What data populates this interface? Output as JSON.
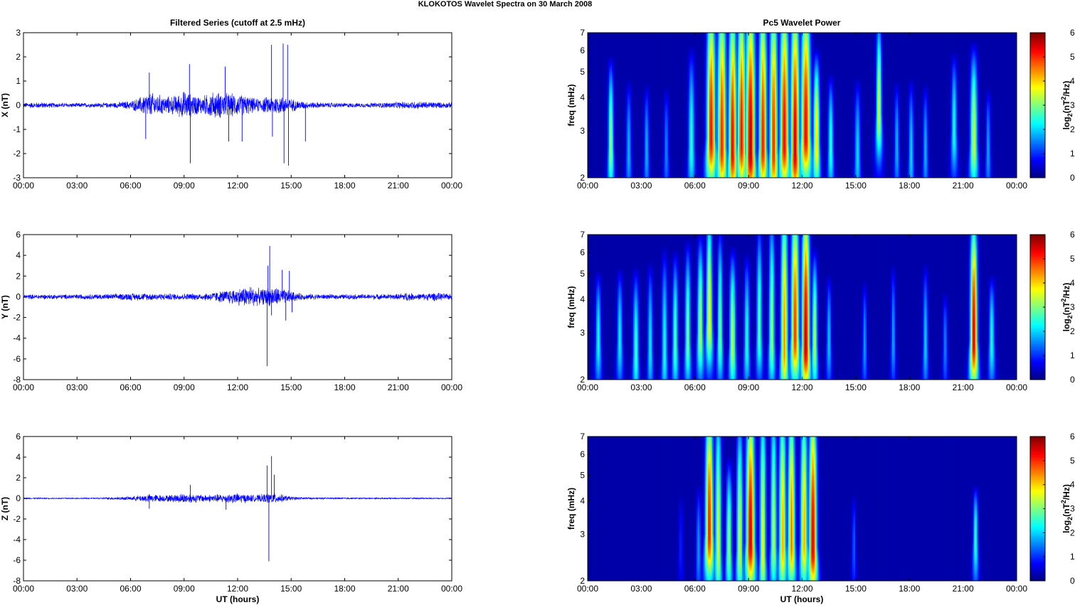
{
  "figure": {
    "title": "KLOKOTOS Wavelet Spectra on 30 March     2008",
    "left_column_title": "Filtered Series (cutoff at 2.5 mHz)",
    "right_column_title": "Pc5 Wavelet Power",
    "xlabel": "UT (hours)",
    "time_tick_labels": [
      "00:00",
      "03:00",
      "06:00",
      "09:00",
      "12:00",
      "15:00",
      "18:00",
      "21:00",
      "00:00"
    ],
    "colors": {
      "trace": "#0000ff",
      "background": "#ffffff",
      "spectrogram_floor": "#00008f"
    },
    "colormap": "jet"
  },
  "chart_data": [
    {
      "type": "line",
      "panel": "X",
      "ylabel": "X (nT)",
      "xlim": [
        0,
        24
      ],
      "ylim": [
        -3,
        3
      ],
      "yticks": [
        -3,
        -2,
        -1,
        0,
        1,
        2,
        3
      ],
      "series": [
        {
          "color": "#0000ff",
          "noise_amplitude": [
            [
              0,
              0.12
            ],
            [
              1,
              0.14
            ],
            [
              2,
              0.1
            ],
            [
              3,
              0.1
            ],
            [
              4,
              0.1
            ],
            [
              5,
              0.12
            ],
            [
              6,
              0.2
            ],
            [
              6.5,
              0.35
            ],
            [
              7,
              0.6
            ],
            [
              7.5,
              0.5
            ],
            [
              8,
              0.4
            ],
            [
              8.5,
              0.45
            ],
            [
              9,
              0.65
            ],
            [
              9.5,
              0.5
            ],
            [
              10,
              0.4
            ],
            [
              10.5,
              0.6
            ],
            [
              11,
              0.6
            ],
            [
              11.5,
              0.55
            ],
            [
              12,
              0.5
            ],
            [
              12.5,
              0.45
            ],
            [
              13,
              0.3
            ],
            [
              13.5,
              0.35
            ],
            [
              14,
              0.45
            ],
            [
              14.5,
              0.4
            ],
            [
              15,
              0.3
            ],
            [
              15.5,
              0.2
            ],
            [
              16,
              0.15
            ],
            [
              17,
              0.12
            ],
            [
              18,
              0.1
            ],
            [
              19,
              0.1
            ],
            [
              20,
              0.12
            ],
            [
              21,
              0.15
            ],
            [
              22,
              0.18
            ],
            [
              23,
              0.15
            ],
            [
              24,
              0.12
            ]
          ],
          "spikes": [
            {
              "t": 6.85,
              "v": -1.4
            },
            {
              "t": 7.05,
              "v": 1.35
            },
            {
              "t": 9.3,
              "v": 1.7
            },
            {
              "t": 9.35,
              "v": -2.4
            },
            {
              "t": 11.3,
              "v": 1.6
            },
            {
              "t": 11.5,
              "v": -1.5
            },
            {
              "t": 12.25,
              "v": -1.5
            },
            {
              "t": 13.9,
              "v": 2.5
            },
            {
              "t": 13.95,
              "v": -1.3
            },
            {
              "t": 14.55,
              "v": 2.55
            },
            {
              "t": 14.6,
              "v": -2.4
            },
            {
              "t": 14.8,
              "v": 2.5
            },
            {
              "t": 14.85,
              "v": -2.5
            },
            {
              "t": 15.8,
              "v": -1.5
            }
          ]
        }
      ]
    },
    {
      "type": "line",
      "panel": "Y",
      "ylabel": "Y (nT)",
      "xlim": [
        0,
        24
      ],
      "ylim": [
        -8,
        6
      ],
      "yticks": [
        -8,
        -6,
        -4,
        -2,
        0,
        2,
        4,
        6
      ],
      "series": [
        {
          "color": "#0000ff",
          "noise_amplitude": [
            [
              0,
              0.25
            ],
            [
              2,
              0.25
            ],
            [
              5,
              0.3
            ],
            [
              6,
              0.4
            ],
            [
              8,
              0.35
            ],
            [
              10,
              0.35
            ],
            [
              11,
              0.6
            ],
            [
              12,
              0.9
            ],
            [
              12.7,
              1.2
            ],
            [
              13.3,
              0.8
            ],
            [
              14,
              1.1
            ],
            [
              14.8,
              0.7
            ],
            [
              15.5,
              0.35
            ],
            [
              17,
              0.25
            ],
            [
              21,
              0.3
            ],
            [
              21.5,
              0.5
            ],
            [
              22,
              0.3
            ],
            [
              23,
              0.45
            ],
            [
              24,
              0.3
            ]
          ],
          "spikes": [
            {
              "t": 13.65,
              "v": -6.7
            },
            {
              "t": 13.7,
              "v": 3.0
            },
            {
              "t": 13.8,
              "v": 4.9
            },
            {
              "t": 13.9,
              "v": -1.8
            },
            {
              "t": 14.5,
              "v": 2.6
            },
            {
              "t": 14.7,
              "v": -2.3
            },
            {
              "t": 14.9,
              "v": 2.5
            },
            {
              "t": 15.05,
              "v": -1.5
            }
          ]
        }
      ]
    },
    {
      "type": "line",
      "panel": "Z",
      "ylabel": "Z (nT)",
      "xlim": [
        0,
        24
      ],
      "ylim": [
        -8,
        6
      ],
      "yticks": [
        -8,
        -6,
        -4,
        -2,
        0,
        2,
        4,
        6
      ],
      "series": [
        {
          "color": "#0000ff",
          "noise_amplitude": [
            [
              0,
              0.06
            ],
            [
              4,
              0.06
            ],
            [
              5,
              0.15
            ],
            [
              6,
              0.2
            ],
            [
              7,
              0.45
            ],
            [
              8,
              0.35
            ],
            [
              9,
              0.55
            ],
            [
              10,
              0.4
            ],
            [
              11,
              0.45
            ],
            [
              12,
              0.55
            ],
            [
              13,
              0.35
            ],
            [
              14,
              0.6
            ],
            [
              14.5,
              0.4
            ],
            [
              15,
              0.2
            ],
            [
              16,
              0.1
            ],
            [
              19,
              0.08
            ],
            [
              24,
              0.06
            ]
          ],
          "spikes": [
            {
              "t": 13.65,
              "v": 3.2
            },
            {
              "t": 13.75,
              "v": -6.1
            },
            {
              "t": 13.9,
              "v": 4.1
            },
            {
              "t": 14.05,
              "v": 2.3
            },
            {
              "t": 7.05,
              "v": -1.0
            },
            {
              "t": 9.35,
              "v": 1.3
            },
            {
              "t": 11.35,
              "v": -1.1
            }
          ]
        }
      ]
    },
    {
      "type": "heatmap",
      "panel": "X",
      "ylabel": "freq (mHz)",
      "xlim": [
        0,
        24
      ],
      "ylim": [
        2,
        7
      ],
      "yscale": "log",
      "yticks": [
        2,
        3,
        4,
        5,
        6,
        7
      ],
      "colorbar": {
        "label": "log2(nT²/Hz)",
        "range": [
          0,
          6
        ],
        "ticks": [
          0,
          1,
          2,
          3,
          4,
          5,
          6
        ]
      },
      "blobs": [
        {
          "t": 1.3,
          "f": 2.6,
          "p": 3.2,
          "w": 0.14,
          "top": 3.9
        },
        {
          "t": 2.3,
          "f": 2.5,
          "p": 1.8,
          "w": 0.13,
          "top": 3.2
        },
        {
          "t": 3.3,
          "f": 2.5,
          "p": 1.8,
          "w": 0.12,
          "top": 3.1
        },
        {
          "t": 4.4,
          "f": 2.5,
          "p": 1.5,
          "w": 0.12,
          "top": 3.0
        },
        {
          "t": 5.8,
          "f": 2.6,
          "p": 2.5,
          "w": 0.16,
          "top": 4.2
        },
        {
          "t": 6.9,
          "f": 2.8,
          "p": 5.5,
          "w": 0.22,
          "top": 7
        },
        {
          "t": 7.5,
          "f": 2.6,
          "p": 5.3,
          "w": 0.22,
          "top": 7
        },
        {
          "t": 8.1,
          "f": 2.5,
          "p": 5.6,
          "w": 0.2,
          "top": 6.5
        },
        {
          "t": 8.6,
          "f": 2.7,
          "p": 5.5,
          "w": 0.2,
          "top": 7
        },
        {
          "t": 9.1,
          "f": 2.5,
          "p": 6,
          "w": 0.24,
          "top": 7
        },
        {
          "t": 9.8,
          "f": 2.6,
          "p": 5.4,
          "w": 0.2,
          "top": 7
        },
        {
          "t": 10.4,
          "f": 2.5,
          "p": 5.3,
          "w": 0.2,
          "top": 7
        },
        {
          "t": 11.0,
          "f": 2.7,
          "p": 5.6,
          "w": 0.22,
          "top": 7
        },
        {
          "t": 11.6,
          "f": 2.5,
          "p": 5.8,
          "w": 0.22,
          "top": 7
        },
        {
          "t": 12.2,
          "f": 2.9,
          "p": 5.6,
          "w": 0.24,
          "top": 7
        },
        {
          "t": 12.8,
          "f": 2.7,
          "p": 4.2,
          "w": 0.16,
          "top": 4.2
        },
        {
          "t": 13.6,
          "f": 2.6,
          "p": 2.5,
          "w": 0.14,
          "top": 3.4
        },
        {
          "t": 15.1,
          "f": 2.4,
          "p": 2.0,
          "w": 0.15,
          "top": 3.2
        },
        {
          "t": 16.3,
          "f": 3.5,
          "p": 3.6,
          "w": 0.14,
          "top": 6
        },
        {
          "t": 17.3,
          "f": 2.6,
          "p": 1.8,
          "w": 0.12,
          "top": 3.2
        },
        {
          "t": 18.1,
          "f": 2.4,
          "p": 2.0,
          "w": 0.13,
          "top": 3.2
        },
        {
          "t": 18.9,
          "f": 2.5,
          "p": 1.8,
          "w": 0.12,
          "top": 3.1
        },
        {
          "t": 20.5,
          "f": 3.0,
          "p": 2.4,
          "w": 0.14,
          "top": 4.2
        },
        {
          "t": 21.6,
          "f": 2.7,
          "p": 3.6,
          "w": 0.18,
          "top": 4.4
        },
        {
          "t": 22.4,
          "f": 2.5,
          "p": 1.7,
          "w": 0.12,
          "top": 3.0
        }
      ]
    },
    {
      "type": "heatmap",
      "panel": "Y",
      "ylabel": "freq (mHz)",
      "xlim": [
        0,
        24
      ],
      "ylim": [
        2,
        7
      ],
      "yscale": "log",
      "yticks": [
        2,
        3,
        4,
        5,
        6,
        7
      ],
      "colorbar": {
        "label": "log2(nT²/Hz)",
        "range": [
          0,
          6
        ],
        "ticks": [
          0,
          1,
          2,
          3,
          4,
          5,
          6
        ]
      },
      "blobs": [
        {
          "t": 0.6,
          "f": 2.8,
          "p": 2.3,
          "w": 0.14,
          "top": 3.6
        },
        {
          "t": 1.8,
          "f": 2.8,
          "p": 2.2,
          "w": 0.14,
          "top": 3.7
        },
        {
          "t": 2.7,
          "f": 2.5,
          "p": 2.6,
          "w": 0.15,
          "top": 3.6
        },
        {
          "t": 3.5,
          "f": 2.6,
          "p": 2.2,
          "w": 0.13,
          "top": 3.8
        },
        {
          "t": 4.3,
          "f": 2.5,
          "p": 2.4,
          "w": 0.14,
          "top": 4.2
        },
        {
          "t": 4.9,
          "f": 2.7,
          "p": 2.8,
          "w": 0.14,
          "top": 4.2
        },
        {
          "t": 5.6,
          "f": 2.8,
          "p": 3.0,
          "w": 0.14,
          "top": 4.6
        },
        {
          "t": 6.3,
          "f": 3.0,
          "p": 3.4,
          "w": 0.15,
          "top": 5.0
        },
        {
          "t": 6.8,
          "f": 3.3,
          "p": 4.0,
          "w": 0.15,
          "top": 6.5
        },
        {
          "t": 7.4,
          "f": 2.9,
          "p": 3.0,
          "w": 0.13,
          "top": 5.2
        },
        {
          "t": 8.1,
          "f": 2.7,
          "p": 3.4,
          "w": 0.16,
          "top": 4.3
        },
        {
          "t": 8.9,
          "f": 2.7,
          "p": 2.4,
          "w": 0.14,
          "top": 4.1
        },
        {
          "t": 9.6,
          "f": 3.0,
          "p": 2.8,
          "w": 0.14,
          "top": 5.5
        },
        {
          "t": 10.3,
          "f": 2.8,
          "p": 3.2,
          "w": 0.15,
          "top": 6
        },
        {
          "t": 11.0,
          "f": 2.6,
          "p": 4.6,
          "w": 0.18,
          "top": 7
        },
        {
          "t": 11.6,
          "f": 2.9,
          "p": 5.2,
          "w": 0.2,
          "top": 7
        },
        {
          "t": 12.2,
          "f": 2.7,
          "p": 6.0,
          "w": 0.2,
          "top": 7
        },
        {
          "t": 12.7,
          "f": 2.7,
          "p": 3.4,
          "w": 0.14,
          "top": 4.3
        },
        {
          "t": 13.5,
          "f": 2.8,
          "p": 1.9,
          "w": 0.12,
          "top": 3.5
        },
        {
          "t": 15.5,
          "f": 2.7,
          "p": 1.6,
          "w": 0.11,
          "top": 3.3
        },
        {
          "t": 17.1,
          "f": 2.8,
          "p": 1.7,
          "w": 0.11,
          "top": 3.8
        },
        {
          "t": 18.9,
          "f": 2.7,
          "p": 2.0,
          "w": 0.12,
          "top": 3.8
        },
        {
          "t": 20.0,
          "f": 2.7,
          "p": 1.5,
          "w": 0.11,
          "top": 3.0
        },
        {
          "t": 21.6,
          "f": 2.8,
          "p": 5.8,
          "w": 0.18,
          "top": 6
        },
        {
          "t": 22.6,
          "f": 2.8,
          "p": 2.4,
          "w": 0.14,
          "top": 3.5
        }
      ]
    },
    {
      "type": "heatmap",
      "panel": "Z",
      "ylabel": "freq (mHz)",
      "xlim": [
        0,
        24
      ],
      "ylim": [
        2,
        7
      ],
      "yscale": "log",
      "yticks": [
        2,
        3,
        4,
        5,
        6,
        7
      ],
      "colorbar": {
        "label": "log2(nT²/Hz)",
        "range": [
          0,
          6
        ],
        "ticks": [
          0,
          1,
          2,
          3,
          4,
          5,
          6
        ]
      },
      "blobs": [
        {
          "t": 5.2,
          "f": 2.7,
          "p": 0.8,
          "w": 0.1,
          "top": 3.0
        },
        {
          "t": 6.2,
          "f": 2.6,
          "p": 1.6,
          "w": 0.12,
          "top": 3.2
        },
        {
          "t": 6.8,
          "f": 3.0,
          "p": 5.4,
          "w": 0.2,
          "top": 7
        },
        {
          "t": 7.3,
          "f": 2.6,
          "p": 3.6,
          "w": 0.16,
          "top": 6.8
        },
        {
          "t": 7.9,
          "f": 2.6,
          "p": 3.2,
          "w": 0.15,
          "top": 4.0
        },
        {
          "t": 8.5,
          "f": 2.6,
          "p": 3.6,
          "w": 0.16,
          "top": 6
        },
        {
          "t": 9.1,
          "f": 2.8,
          "p": 5.8,
          "w": 0.22,
          "top": 7
        },
        {
          "t": 9.8,
          "f": 2.5,
          "p": 3.8,
          "w": 0.16,
          "top": 7
        },
        {
          "t": 10.4,
          "f": 2.7,
          "p": 3.4,
          "w": 0.16,
          "top": 7
        },
        {
          "t": 10.9,
          "f": 2.7,
          "p": 4.4,
          "w": 0.18,
          "top": 7
        },
        {
          "t": 11.4,
          "f": 2.8,
          "p": 4.8,
          "w": 0.18,
          "top": 7
        },
        {
          "t": 12.1,
          "f": 2.8,
          "p": 4.4,
          "w": 0.18,
          "top": 7
        },
        {
          "t": 12.6,
          "f": 2.7,
          "p": 5.8,
          "w": 0.2,
          "top": 7
        },
        {
          "t": 14.9,
          "f": 2.7,
          "p": 1.2,
          "w": 0.1,
          "top": 3.0
        },
        {
          "t": 21.7,
          "f": 2.9,
          "p": 2.6,
          "w": 0.12,
          "top": 3.3
        }
      ]
    }
  ]
}
